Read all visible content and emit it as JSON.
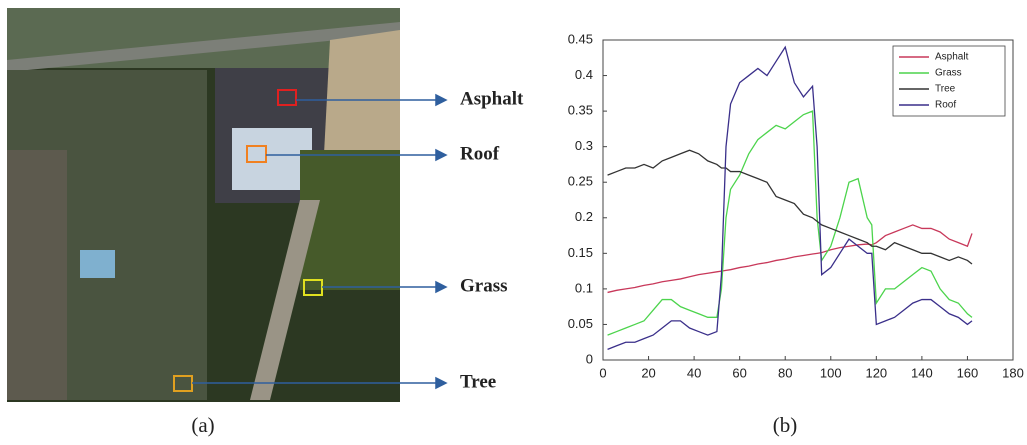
{
  "image_panel": {
    "labels": [
      "Asphalt",
      "Roof",
      "Grass",
      "Tree"
    ],
    "caption": "(a)"
  },
  "chart_data": {
    "type": "line",
    "caption": "(b)",
    "x": [
      2,
      6,
      10,
      14,
      18,
      22,
      26,
      30,
      34,
      38,
      42,
      46,
      50,
      52,
      54,
      56,
      60,
      64,
      68,
      72,
      76,
      80,
      84,
      88,
      92,
      94,
      96,
      100,
      104,
      108,
      112,
      116,
      118,
      120,
      124,
      128,
      132,
      136,
      140,
      144,
      148,
      152,
      156,
      160,
      162
    ],
    "series": [
      {
        "name": "Asphalt",
        "color": "#c8385a",
        "values": [
          0.095,
          0.098,
          0.1,
          0.102,
          0.105,
          0.107,
          0.11,
          0.112,
          0.114,
          0.117,
          0.12,
          0.122,
          0.124,
          0.125,
          0.126,
          0.127,
          0.13,
          0.132,
          0.135,
          0.137,
          0.14,
          0.142,
          0.145,
          0.147,
          0.149,
          0.15,
          0.151,
          0.155,
          0.158,
          0.16,
          0.162,
          0.163,
          0.162,
          0.165,
          0.175,
          0.18,
          0.185,
          0.19,
          0.185,
          0.185,
          0.18,
          0.17,
          0.165,
          0.16,
          0.178
        ]
      },
      {
        "name": "Grass",
        "color": "#4cd44c",
        "values": [
          0.035,
          0.04,
          0.045,
          0.05,
          0.055,
          0.07,
          0.085,
          0.085,
          0.075,
          0.07,
          0.065,
          0.06,
          0.06,
          0.1,
          0.2,
          0.24,
          0.26,
          0.29,
          0.31,
          0.32,
          0.33,
          0.325,
          0.335,
          0.345,
          0.35,
          0.2,
          0.14,
          0.16,
          0.2,
          0.25,
          0.255,
          0.2,
          0.19,
          0.08,
          0.1,
          0.1,
          0.11,
          0.12,
          0.13,
          0.125,
          0.1,
          0.085,
          0.08,
          0.065,
          0.06
        ]
      },
      {
        "name": "Tree",
        "color": "#333333",
        "values": [
          0.26,
          0.265,
          0.27,
          0.27,
          0.275,
          0.27,
          0.28,
          0.285,
          0.29,
          0.295,
          0.29,
          0.28,
          0.275,
          0.27,
          0.27,
          0.265,
          0.265,
          0.26,
          0.255,
          0.25,
          0.23,
          0.225,
          0.22,
          0.205,
          0.2,
          0.195,
          0.19,
          0.185,
          0.18,
          0.175,
          0.17,
          0.165,
          0.16,
          0.16,
          0.155,
          0.165,
          0.16,
          0.155,
          0.15,
          0.15,
          0.145,
          0.14,
          0.145,
          0.14,
          0.135
        ]
      },
      {
        "name": "Roof",
        "color": "#3a2f8a",
        "values": [
          0.015,
          0.02,
          0.025,
          0.025,
          0.03,
          0.035,
          0.045,
          0.055,
          0.055,
          0.045,
          0.04,
          0.035,
          0.04,
          0.12,
          0.3,
          0.36,
          0.39,
          0.4,
          0.41,
          0.4,
          0.42,
          0.44,
          0.39,
          0.37,
          0.385,
          0.3,
          0.12,
          0.13,
          0.15,
          0.17,
          0.16,
          0.15,
          0.15,
          0.05,
          0.055,
          0.06,
          0.07,
          0.08,
          0.085,
          0.085,
          0.075,
          0.065,
          0.06,
          0.05,
          0.055
        ]
      }
    ],
    "xlim": [
      0,
      180
    ],
    "xticks": [
      0,
      20,
      40,
      60,
      80,
      100,
      120,
      140,
      160,
      180
    ],
    "ylim": [
      0,
      0.45
    ],
    "yticks": [
      0,
      0.05,
      0.1,
      0.15,
      0.2,
      0.25,
      0.3,
      0.35,
      0.4,
      0.45
    ],
    "legend": "upper-right"
  }
}
